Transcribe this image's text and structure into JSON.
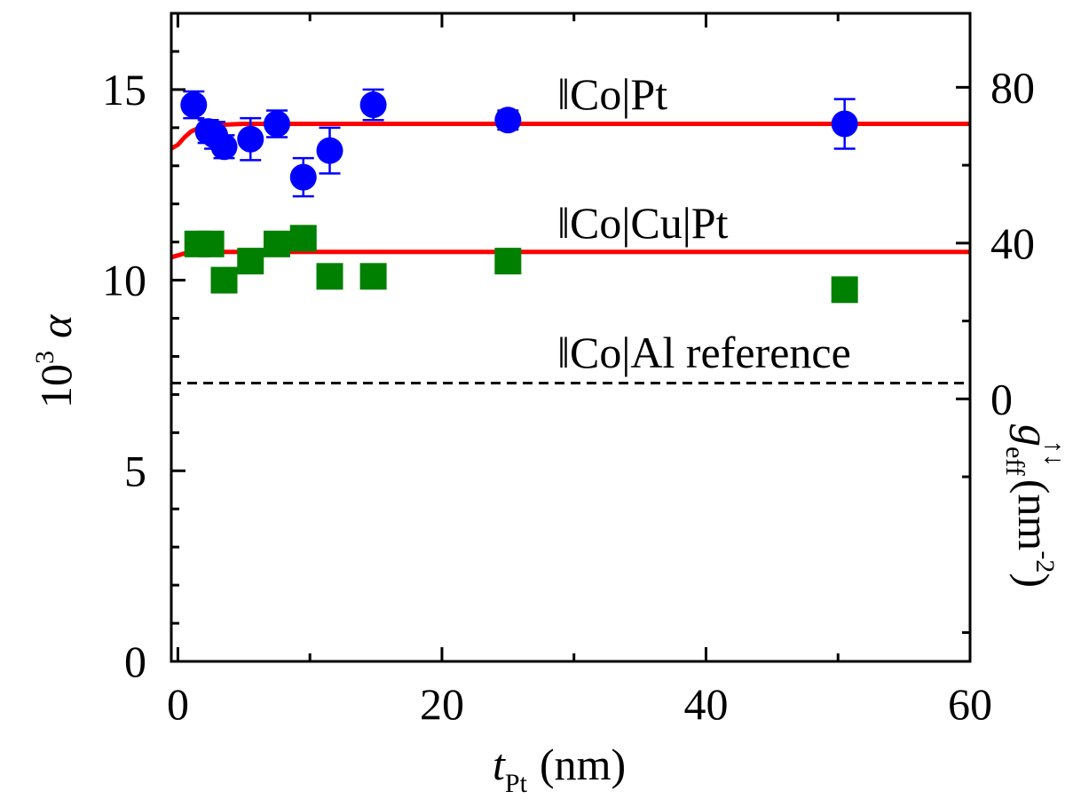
{
  "chart_data": {
    "type": "scatter",
    "title": "",
    "xlabel": {
      "main": "t",
      "sub": "Pt",
      "unit": "(nm)"
    },
    "ylabel": {
      "pre": "10",
      "sup": "3",
      "symbol": "α"
    },
    "y2label": {
      "main": "g",
      "sub": "eff",
      "sup": "↑↓",
      "unit_open": "(nm",
      "unit_sup": "-2",
      "unit_close": ")"
    },
    "xlim": [
      -0.5,
      60
    ],
    "ylim": [
      0,
      17
    ],
    "y2lim": [
      -67.4,
      99
    ],
    "xticks": [
      0,
      20,
      40,
      60
    ],
    "xtick_labels": [
      "0",
      "20",
      "40",
      "60"
    ],
    "yticks": [
      0,
      5,
      10,
      15
    ],
    "ytick_labels": [
      "0",
      "5",
      "10",
      "15"
    ],
    "y2ticks": [
      0,
      40,
      80
    ],
    "y2tick_labels": [
      "0",
      "40",
      "80"
    ],
    "grid": false,
    "colors": {
      "co_pt": "#0000ff",
      "co_cu_pt": "#008000",
      "fit": "#ff0000",
      "reference": "#000000"
    },
    "series": [
      {
        "name": "||Co|Pt",
        "marker": "circle",
        "color": "#0000ff",
        "x": [
          1.2,
          2.3,
          2.8,
          3.5,
          5.5,
          7.5,
          9.5,
          11.5,
          14.8,
          25,
          50.5
        ],
        "y": [
          14.6,
          13.9,
          13.8,
          13.5,
          13.7,
          14.1,
          12.7,
          13.4,
          14.6,
          14.2,
          14.1
        ],
        "err": [
          0.35,
          0.3,
          0.35,
          0.3,
          0.55,
          0.35,
          0.5,
          0.6,
          0.4,
          0.25,
          0.65
        ]
      },
      {
        "name": "||Co|Cu|Pt",
        "marker": "square",
        "color": "#008000",
        "x": [
          1.5,
          2.5,
          3.5,
          5.5,
          7.5,
          9.5,
          11.5,
          14.8,
          25,
          50.5
        ],
        "y": [
          10.95,
          10.95,
          10.0,
          10.5,
          10.95,
          11.1,
          10.1,
          10.1,
          10.5,
          9.75
        ],
        "err": [
          0.15,
          0.15,
          0.2,
          0.3,
          0.15,
          0.15,
          0.15,
          0.3,
          0.15,
          0.15
        ]
      }
    ],
    "fit_lines": [
      {
        "x": [
          -0.5,
          0,
          0.5,
          1,
          1.5,
          2,
          3,
          5,
          10,
          60
        ],
        "y": [
          13.45,
          13.55,
          13.75,
          13.9,
          13.98,
          14.03,
          14.07,
          14.1,
          14.1,
          14.1
        ]
      },
      {
        "x": [
          -0.5,
          0,
          0.5,
          1,
          1.5,
          2,
          3,
          5,
          60
        ],
        "y": [
          10.6,
          10.65,
          10.7,
          10.72,
          10.73,
          10.74,
          10.74,
          10.74,
          10.74
        ]
      }
    ],
    "reference_line": {
      "y": 7.3
    },
    "annotations": [
      {
        "bars": "‖",
        "text": "Co|Pt"
      },
      {
        "bars": "‖",
        "text": "Co|Cu|Pt"
      },
      {
        "bars": "‖",
        "text": "Co|Al reference"
      }
    ]
  }
}
